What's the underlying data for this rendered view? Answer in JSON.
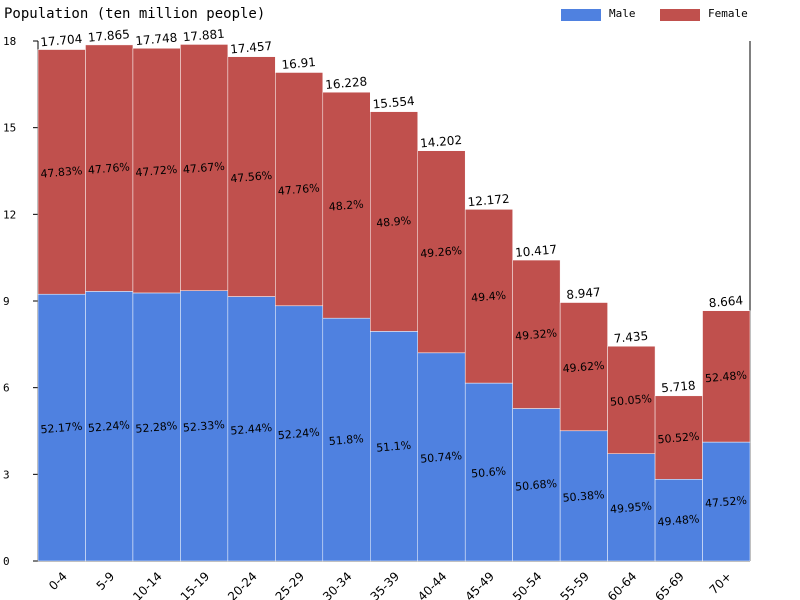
{
  "chart_data": {
    "type": "bar",
    "stacked": true,
    "title": "Population (ten million people)",
    "ylim": [
      0,
      18
    ],
    "y_ticks": [
      0,
      3,
      6,
      9,
      12,
      15,
      18
    ],
    "categories": [
      "0-4",
      "5-9",
      "10-14",
      "15-19",
      "20-24",
      "25-29",
      "30-34",
      "35-39",
      "40-44",
      "45-49",
      "50-54",
      "55-59",
      "60-64",
      "65-69",
      "70+"
    ],
    "totals": [
      "17.704",
      "17.865",
      "17.748",
      "17.881",
      "17.457",
      "16.91",
      "16.228",
      "15.554",
      "14.202",
      "12.172",
      "10.417",
      "8.947",
      "7.435",
      "5.718",
      "8.664"
    ],
    "legend_position": "top-right",
    "series": [
      {
        "name": "Male",
        "color": "#4f81e0",
        "values": [
          9.236,
          9.333,
          9.279,
          9.357,
          9.154,
          8.834,
          8.406,
          7.948,
          7.206,
          6.159,
          5.279,
          4.507,
          3.714,
          2.829,
          4.117
        ],
        "percent_labels": [
          "52.17%",
          "52.24%",
          "52.28%",
          "52.33%",
          "52.44%",
          "52.24%",
          "51.8%",
          "51.1%",
          "50.74%",
          "50.6%",
          "50.68%",
          "50.38%",
          "49.95%",
          "49.48%",
          "47.52%"
        ]
      },
      {
        "name": "Female",
        "color": "#c0504d",
        "values": [
          8.468,
          8.532,
          8.469,
          8.524,
          8.303,
          8.076,
          7.822,
          7.606,
          6.996,
          6.013,
          5.138,
          4.44,
          3.721,
          2.889,
          4.547
        ],
        "percent_labels": [
          "47.83%",
          "47.76%",
          "47.72%",
          "47.67%",
          "47.56%",
          "47.76%",
          "48.2%",
          "48.9%",
          "49.26%",
          "49.4%",
          "49.32%",
          "49.62%",
          "50.05%",
          "50.52%",
          "52.48%"
        ]
      }
    ]
  }
}
